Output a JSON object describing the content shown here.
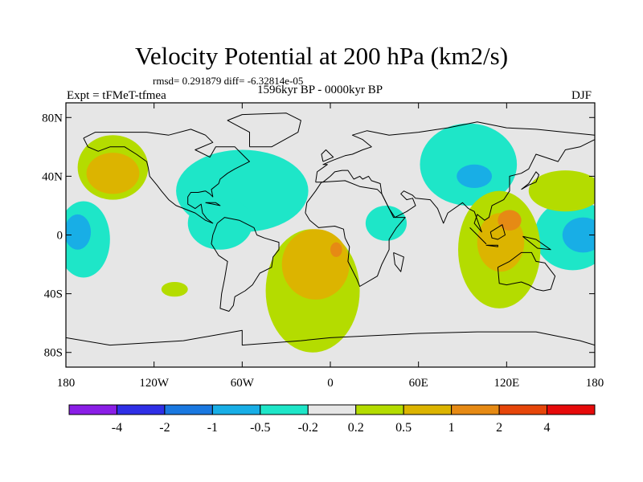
{
  "title": "Velocity Potential at 200 hPa (km2/s)",
  "stats": {
    "rmsd_label": "rmsd=",
    "rmsd_value": "0.291879",
    "diff_label": "diff=",
    "diff_value": "-6.32814e-05"
  },
  "experiment": "Expt = tFMeT-tfmea",
  "period": "1596kyr BP - 0000kyr BP",
  "season": "DJF",
  "map": {
    "lon_ticks": [
      {
        "lon": -180,
        "label": "180"
      },
      {
        "lon": -120,
        "label": "120W"
      },
      {
        "lon": -60,
        "label": "60W"
      },
      {
        "lon": 0,
        "label": "0"
      },
      {
        "lon": 60,
        "label": "60E"
      },
      {
        "lon": 120,
        "label": "120E"
      },
      {
        "lon": 180,
        "label": "180"
      }
    ],
    "lat_ticks": [
      {
        "lat": 80,
        "label": "80N"
      },
      {
        "lat": 40,
        "label": "40N"
      },
      {
        "lat": 0,
        "label": "0"
      },
      {
        "lat": -40,
        "label": "40S"
      },
      {
        "lat": -80,
        "label": "80S"
      }
    ],
    "background_color": "#e6e6e6"
  },
  "colorbar": {
    "colors": [
      "#8a1ee6",
      "#2f2fe6",
      "#1a78e0",
      "#18aee6",
      "#1ee6c8",
      "#e6e6e6",
      "#b4dc00",
      "#dcb400",
      "#e68a14",
      "#e6460a",
      "#e60a0a"
    ],
    "labels": [
      "-4",
      "-2",
      "-1",
      "-0.5",
      "-0.2",
      "0.2",
      "0.5",
      "1",
      "2",
      "4"
    ]
  },
  "field_patches": [
    {
      "level": "-0.2",
      "color": "#1ee6c8",
      "lon": -60,
      "lat": 30,
      "rlon": 45,
      "rlat": 28
    },
    {
      "level": "-0.2",
      "color": "#1ee6c8",
      "lon": -75,
      "lat": 8,
      "rlon": 22,
      "rlat": 18
    },
    {
      "level": "-0.2",
      "color": "#1ee6c8",
      "lon": -168,
      "lat": -3,
      "rlon": 18,
      "rlat": 26
    },
    {
      "level": "-0.5",
      "color": "#18aee6",
      "lon": -172,
      "lat": 2,
      "rlon": 9,
      "rlat": 12
    },
    {
      "level": "-0.2",
      "color": "#1ee6c8",
      "lon": 38,
      "lat": 8,
      "rlon": 14,
      "rlat": 12
    },
    {
      "level": "-0.2",
      "color": "#1ee6c8",
      "lon": 94,
      "lat": 48,
      "rlon": 33,
      "rlat": 28
    },
    {
      "level": "-0.5",
      "color": "#18aee6",
      "lon": 98,
      "lat": 40,
      "rlon": 12,
      "rlat": 8
    },
    {
      "level": "-0.2",
      "color": "#1ee6c8",
      "lon": 165,
      "lat": 0,
      "rlon": 26,
      "rlat": 24
    },
    {
      "level": "-0.5",
      "color": "#18aee6",
      "lon": 172,
      "lat": 0,
      "rlon": 14,
      "rlat": 12
    },
    {
      "level": "0.2",
      "color": "#b4dc00",
      "lon": -148,
      "lat": 46,
      "rlon": 24,
      "rlat": 22
    },
    {
      "level": "0.5",
      "color": "#dcb400",
      "lon": -148,
      "lat": 42,
      "rlon": 18,
      "rlat": 14
    },
    {
      "level": "0.2",
      "color": "#b4dc00",
      "lon": -12,
      "lat": -38,
      "rlon": 32,
      "rlat": 42
    },
    {
      "level": "0.5",
      "color": "#dcb400",
      "lon": -10,
      "lat": -20,
      "rlon": 23,
      "rlat": 24
    },
    {
      "level": "1",
      "color": "#e68a14",
      "lon": 4,
      "lat": -10,
      "rlon": 4,
      "rlat": 5
    },
    {
      "level": "0.2",
      "color": "#b4dc00",
      "lon": -106,
      "lat": -37,
      "rlon": 9,
      "rlat": 5
    },
    {
      "level": "0.2",
      "color": "#b4dc00",
      "lon": 115,
      "lat": -10,
      "rlon": 28,
      "rlat": 40
    },
    {
      "level": "0.5",
      "color": "#dcb400",
      "lon": 116,
      "lat": -5,
      "rlon": 16,
      "rlat": 20
    },
    {
      "level": "1",
      "color": "#e68a14",
      "lon": 122,
      "lat": 10,
      "rlon": 8,
      "rlat": 7
    },
    {
      "level": "0.2",
      "color": "#b4dc00",
      "lon": 160,
      "lat": 30,
      "rlon": 25,
      "rlat": 14
    }
  ],
  "coastlines": [
    [
      [
        -168,
        66
      ],
      [
        -160,
        70
      ],
      [
        -140,
        70
      ],
      [
        -125,
        70
      ],
      [
        -110,
        68
      ],
      [
        -95,
        72
      ],
      [
        -85,
        68
      ],
      [
        -80,
        63
      ],
      [
        -92,
        58
      ],
      [
        -82,
        53
      ],
      [
        -78,
        60
      ],
      [
        -65,
        60
      ],
      [
        -60,
        55
      ],
      [
        -55,
        50
      ],
      [
        -65,
        45
      ],
      [
        -70,
        42
      ],
      [
        -75,
        38
      ],
      [
        -76,
        35
      ],
      [
        -81,
        31
      ],
      [
        -80,
        26
      ],
      [
        -82,
        28
      ],
      [
        -85,
        30
      ],
      [
        -90,
        29
      ],
      [
        -95,
        29
      ],
      [
        -97,
        26
      ],
      [
        -97,
        21
      ],
      [
        -92,
        18
      ],
      [
        -88,
        21
      ],
      [
        -87,
        15
      ],
      [
        -84,
        11
      ],
      [
        -80,
        8
      ],
      [
        -85,
        10
      ],
      [
        -92,
        15
      ],
      [
        -105,
        20
      ],
      [
        -110,
        24
      ],
      [
        -115,
        30
      ],
      [
        -118,
        34
      ],
      [
        -123,
        40
      ],
      [
        -124,
        46
      ],
      [
        -125,
        50
      ],
      [
        -132,
        55
      ],
      [
        -140,
        60
      ],
      [
        -150,
        60
      ],
      [
        -158,
        57
      ],
      [
        -165,
        60
      ],
      [
        -168,
        66
      ]
    ],
    [
      [
        -77,
        8
      ],
      [
        -72,
        12
      ],
      [
        -62,
        10
      ],
      [
        -52,
        5
      ],
      [
        -50,
        0
      ],
      [
        -45,
        -2
      ],
      [
        -35,
        -5
      ],
      [
        -35,
        -10
      ],
      [
        -39,
        -15
      ],
      [
        -40,
        -22
      ],
      [
        -48,
        -26
      ],
      [
        -53,
        -34
      ],
      [
        -58,
        -38
      ],
      [
        -65,
        -42
      ],
      [
        -66,
        -48
      ],
      [
        -69,
        -52
      ],
      [
        -75,
        -50
      ],
      [
        -74,
        -40
      ],
      [
        -72,
        -30
      ],
      [
        -70,
        -18
      ],
      [
        -76,
        -14
      ],
      [
        -81,
        -6
      ],
      [
        -80,
        0
      ],
      [
        -77,
        8
      ]
    ],
    [
      [
        -17,
        15
      ],
      [
        -16,
        22
      ],
      [
        -10,
        30
      ],
      [
        -6,
        36
      ],
      [
        10,
        37
      ],
      [
        20,
        33
      ],
      [
        32,
        31
      ],
      [
        35,
        28
      ],
      [
        43,
        12
      ],
      [
        51,
        12
      ],
      [
        45,
        5
      ],
      [
        40,
        -3
      ],
      [
        40,
        -10
      ],
      [
        35,
        -20
      ],
      [
        32,
        -28
      ],
      [
        20,
        -35
      ],
      [
        18,
        -30
      ],
      [
        12,
        -18
      ],
      [
        13,
        -8
      ],
      [
        10,
        -2
      ],
      [
        9,
        4
      ],
      [
        3,
        6
      ],
      [
        -8,
        5
      ],
      [
        -14,
        10
      ],
      [
        -17,
        15
      ]
    ],
    [
      [
        -10,
        36
      ],
      [
        -9,
        43
      ],
      [
        -2,
        48
      ],
      [
        -5,
        48
      ],
      [
        2,
        51
      ],
      [
        10,
        54
      ],
      [
        15,
        55
      ],
      [
        22,
        58
      ],
      [
        28,
        60
      ],
      [
        22,
        65
      ],
      [
        15,
        68
      ],
      [
        25,
        71
      ],
      [
        40,
        68
      ],
      [
        60,
        70
      ],
      [
        80,
        73
      ],
      [
        100,
        77
      ],
      [
        120,
        73
      ],
      [
        140,
        72
      ],
      [
        160,
        70
      ],
      [
        180,
        68
      ],
      [
        180,
        65
      ],
      [
        170,
        60
      ],
      [
        160,
        58
      ],
      [
        155,
        50
      ],
      [
        140,
        55
      ],
      [
        135,
        45
      ],
      [
        130,
        42
      ],
      [
        122,
        40
      ],
      [
        122,
        30
      ],
      [
        118,
        24
      ],
      [
        110,
        20
      ],
      [
        108,
        12
      ],
      [
        105,
        10
      ],
      [
        100,
        14
      ],
      [
        98,
        8
      ],
      [
        103,
        2
      ],
      [
        98,
        16
      ],
      [
        94,
        18
      ],
      [
        90,
        22
      ],
      [
        80,
        15
      ],
      [
        77,
        8
      ],
      [
        73,
        18
      ],
      [
        68,
        24
      ],
      [
        58,
        25
      ],
      [
        56,
        27
      ],
      [
        50,
        30
      ],
      [
        48,
        28
      ],
      [
        52,
        24
      ],
      [
        56,
        25
      ],
      [
        58,
        20
      ],
      [
        52,
        16
      ],
      [
        44,
        12
      ],
      [
        40,
        18
      ],
      [
        35,
        28
      ],
      [
        34,
        35
      ],
      [
        28,
        37
      ],
      [
        26,
        40
      ],
      [
        22,
        38
      ],
      [
        20,
        40
      ],
      [
        16,
        38
      ],
      [
        12,
        44
      ],
      [
        8,
        44
      ],
      [
        3,
        43
      ],
      [
        0,
        40
      ],
      [
        -5,
        36
      ],
      [
        -10,
        36
      ]
    ],
    [
      [
        114,
        -22
      ],
      [
        122,
        -18
      ],
      [
        130,
        -12
      ],
      [
        137,
        -12
      ],
      [
        140,
        -18
      ],
      [
        146,
        -19
      ],
      [
        153,
        -28
      ],
      [
        150,
        -37
      ],
      [
        145,
        -38
      ],
      [
        140,
        -37
      ],
      [
        135,
        -34
      ],
      [
        130,
        -32
      ],
      [
        120,
        -34
      ],
      [
        115,
        -33
      ],
      [
        114,
        -22
      ]
    ],
    [
      [
        -55,
        60
      ],
      [
        -40,
        60
      ],
      [
        -22,
        70
      ],
      [
        -20,
        78
      ],
      [
        -30,
        83
      ],
      [
        -60,
        82
      ],
      [
        -70,
        78
      ],
      [
        -55,
        70
      ],
      [
        -55,
        60
      ]
    ],
    [
      [
        -5,
        50
      ],
      [
        2,
        53
      ],
      [
        -3,
        58
      ],
      [
        -6,
        55
      ],
      [
        -5,
        50
      ]
    ],
    [
      [
        130,
        31
      ],
      [
        135,
        34
      ],
      [
        140,
        36
      ],
      [
        142,
        41
      ],
      [
        140,
        43
      ],
      [
        135,
        35
      ],
      [
        130,
        31
      ]
    ],
    [
      [
        95,
        5
      ],
      [
        105,
        -5
      ],
      [
        106,
        -6
      ],
      [
        100,
        0
      ],
      [
        95,
        5
      ]
    ],
    [
      [
        106,
        -7
      ],
      [
        114,
        -8
      ],
      [
        114,
        -7
      ],
      [
        106,
        -7
      ]
    ],
    [
      [
        109,
        2
      ],
      [
        117,
        7
      ],
      [
        119,
        0
      ],
      [
        114,
        -3
      ],
      [
        110,
        -2
      ],
      [
        109,
        2
      ]
    ],
    [
      [
        131,
        -1
      ],
      [
        140,
        -3
      ],
      [
        150,
        -10
      ],
      [
        141,
        -9
      ],
      [
        131,
        -1
      ]
    ],
    [
      [
        43,
        -12
      ],
      [
        50,
        -15
      ],
      [
        48,
        -25
      ],
      [
        44,
        -20
      ],
      [
        43,
        -12
      ]
    ],
    [
      [
        -180,
        -70
      ],
      [
        -150,
        -75
      ],
      [
        -100,
        -72
      ],
      [
        -60,
        -65
      ],
      [
        -60,
        -75
      ],
      [
        -20,
        -72
      ],
      [
        0,
        -70
      ],
      [
        60,
        -67
      ],
      [
        100,
        -66
      ],
      [
        140,
        -66
      ],
      [
        170,
        -72
      ],
      [
        180,
        -75
      ]
    ],
    [
      [
        -85,
        22
      ],
      [
        -75,
        20
      ],
      [
        -78,
        22
      ],
      [
        -85,
        22
      ]
    ]
  ]
}
